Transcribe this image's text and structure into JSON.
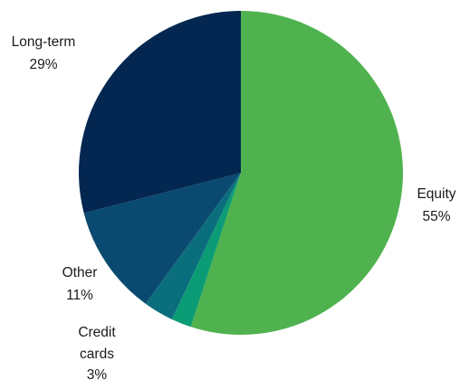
{
  "chart_data": {
    "type": "pie",
    "title": "",
    "start_angle_deg": 0,
    "direction": "clockwise",
    "legend": "none",
    "slices": [
      {
        "label": "Equity",
        "value": 55,
        "value_label": "55%",
        "color": "#4fb24e"
      },
      {
        "label": "",
        "value": 2,
        "value_label": "",
        "color": "#0c9c75"
      },
      {
        "label": "Credit cards",
        "value": 3,
        "value_label": "3%",
        "color": "#0b6e7c"
      },
      {
        "label": "Other",
        "value": 11,
        "value_label": "11%",
        "color": "#0b4a70"
      },
      {
        "label": "Long-term",
        "value": 29,
        "value_label": "29%",
        "color": "#032750"
      }
    ],
    "label_lines": {
      "equity": [
        "Equity",
        "55%"
      ],
      "credit_cards": [
        "Credit",
        "cards",
        "3%"
      ],
      "other": [
        "Other",
        "11%"
      ],
      "long_term": [
        "Long-term",
        "29%"
      ]
    }
  }
}
